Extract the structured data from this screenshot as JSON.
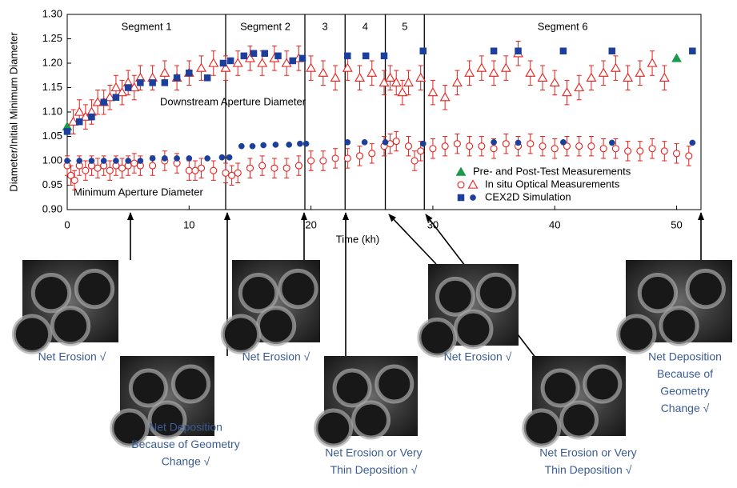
{
  "chart_data": {
    "type": "scatter",
    "x_label": "Time (kh)",
    "y_label": "Diameter/Initial Minimum Diameter",
    "xlim": [
      0,
      52
    ],
    "xticks": [
      0,
      10,
      20,
      30,
      40,
      50
    ],
    "ylim": [
      0.9,
      1.3
    ],
    "yticks": [
      {
        "value": 0.9,
        "label": "0.90"
      },
      {
        "value": 0.95,
        "label": "0.95"
      },
      {
        "value": 1.0,
        "label": "1.00"
      },
      {
        "value": 1.05,
        "label": "1.05"
      },
      {
        "value": 1.1,
        "label": "1.10"
      },
      {
        "value": 1.15,
        "label": "1.15"
      },
      {
        "value": 1.2,
        "label": "1.20"
      },
      {
        "value": 1.25,
        "label": "1.25"
      },
      {
        "value": 1.3,
        "label": "1.30"
      }
    ],
    "segment_boundaries": [
      13,
      19.5,
      22.8,
      26.1,
      29.3
    ],
    "segment_labels": [
      "Segment 1",
      "Segment 2",
      "3",
      "4",
      "5",
      "Segment 6"
    ],
    "annotations": [
      "Downstream Aperture Diameter",
      "Minimum Aperture Diameter"
    ],
    "series": [
      {
        "name": "Pre- and Post-Test Measurements",
        "color": "#1a9a4a",
        "groups": [
          {
            "marker": "triangle",
            "filled": true,
            "x": [
              0,
              50
            ],
            "values": [
              1.07,
              1.21
            ]
          }
        ]
      },
      {
        "name": "In situ Optical Measurements",
        "color": "#e8201c",
        "groups": [
          {
            "marker": "circle",
            "filled": false,
            "x": [
              0,
              0.3,
              0.6,
              1,
              1.5,
              2,
              2.5,
              3,
              3.5,
              4,
              4.5,
              5,
              5.5,
              6,
              7,
              8,
              9,
              10,
              10.5,
              11,
              12,
              13,
              13.5,
              14,
              15,
              16,
              17,
              18,
              19,
              20,
              21,
              22,
              23,
              24,
              25,
              26,
              26.5,
              27,
              28,
              28.5,
              29,
              30,
              31,
              32,
              33,
              34,
              35,
              36,
              37,
              38,
              39,
              40,
              41,
              42,
              43,
              44,
              45,
              46,
              47,
              48,
              49,
              50,
              51
            ],
            "values": [
              0.99,
              0.97,
              0.96,
              0.99,
              0.98,
              0.99,
              0.985,
              0.99,
              0.98,
              0.99,
              0.985,
              0.99,
              0.995,
              0.99,
              0.99,
              1.0,
              0.995,
              0.98,
              0.98,
              0.985,
              0.98,
              0.975,
              0.97,
              0.975,
              0.985,
              0.99,
              0.985,
              0.985,
              0.99,
              1.0,
              1.0,
              1.005,
              1.005,
              1.01,
              1.015,
              1.03,
              1.035,
              1.04,
              1.03,
              1.0,
              1.02,
              1.025,
              1.03,
              1.035,
              1.03,
              1.03,
              1.025,
              1.035,
              1.03,
              1.035,
              1.03,
              1.025,
              1.03,
              1.03,
              1.03,
              1.025,
              1.025,
              1.02,
              1.02,
              1.025,
              1.02,
              1.015,
              1.01
            ],
            "errors": [
              0.02,
              0.02,
              0.02,
              0.02,
              0.02,
              0.02,
              0.02,
              0.02,
              0.02,
              0.02,
              0.02,
              0.02,
              0.02,
              0.02,
              0.02,
              0.02,
              0.02,
              0.02,
              0.02,
              0.02,
              0.02,
              0.02,
              0.02,
              0.02,
              0.02,
              0.02,
              0.02,
              0.02,
              0.02,
              0.02,
              0.02,
              0.02,
              0.02,
              0.02,
              0.02,
              0.02,
              0.02,
              0.02,
              0.02,
              0.02,
              0.02,
              0.02,
              0.02,
              0.02,
              0.02,
              0.02,
              0.02,
              0.02,
              0.02,
              0.02,
              0.02,
              0.02,
              0.02,
              0.02,
              0.02,
              0.02,
              0.02,
              0.02,
              0.02,
              0.02,
              0.02,
              0.02,
              0.02
            ]
          },
          {
            "marker": "triangle",
            "filled": false,
            "x": [
              0.5,
              1,
              1.5,
              2,
              2.5,
              3,
              3.5,
              4,
              4.5,
              5,
              5.5,
              6,
              7,
              8,
              9,
              10,
              11,
              12,
              13,
              14,
              15,
              16,
              17,
              18,
              19,
              20,
              21,
              22,
              23,
              24,
              25,
              26,
              26.5,
              27,
              27.5,
              28,
              29,
              30,
              31,
              32,
              33,
              34,
              35,
              36,
              37,
              38,
              39,
              40,
              41,
              42,
              43,
              44,
              45,
              46,
              47,
              48,
              49
            ],
            "values": [
              1.08,
              1.1,
              1.09,
              1.1,
              1.12,
              1.12,
              1.13,
              1.15,
              1.14,
              1.16,
              1.15,
              1.17,
              1.17,
              1.18,
              1.17,
              1.18,
              1.19,
              1.2,
              1.19,
              1.2,
              1.21,
              1.2,
              1.21,
              1.2,
              1.21,
              1.19,
              1.18,
              1.17,
              1.19,
              1.17,
              1.18,
              1.16,
              1.17,
              1.16,
              1.14,
              1.16,
              1.17,
              1.14,
              1.13,
              1.16,
              1.18,
              1.19,
              1.18,
              1.19,
              1.22,
              1.18,
              1.17,
              1.16,
              1.14,
              1.15,
              1.17,
              1.18,
              1.19,
              1.17,
              1.18,
              1.2,
              1.17
            ],
            "errors": [
              0.025,
              0.025,
              0.025,
              0.025,
              0.025,
              0.025,
              0.025,
              0.025,
              0.025,
              0.025,
              0.025,
              0.025,
              0.025,
              0.025,
              0.025,
              0.025,
              0.025,
              0.025,
              0.025,
              0.025,
              0.025,
              0.025,
              0.025,
              0.025,
              0.025,
              0.025,
              0.025,
              0.025,
              0.025,
              0.025,
              0.025,
              0.025,
              0.025,
              0.025,
              0.025,
              0.025,
              0.025,
              0.025,
              0.025,
              0.025,
              0.025,
              0.025,
              0.025,
              0.025,
              0.025,
              0.025,
              0.025,
              0.025,
              0.025,
              0.025,
              0.025,
              0.025,
              0.025,
              0.025,
              0.025,
              0.025,
              0.025
            ]
          }
        ]
      },
      {
        "name": "CEX2D Simulation",
        "color": "#1c3f9c",
        "groups": [
          {
            "marker": "square",
            "filled": true,
            "x": [
              0,
              1,
              2,
              3,
              4,
              5,
              6,
              7,
              8,
              9,
              10,
              11.5,
              12.8,
              13.4,
              14.5,
              15.3,
              16.2,
              17.3,
              18.5,
              19.3,
              23,
              24.5,
              26,
              29.2,
              35,
              37,
              40.7,
              44.7,
              51.3
            ],
            "values": [
              1.06,
              1.08,
              1.09,
              1.12,
              1.13,
              1.15,
              1.16,
              1.16,
              1.16,
              1.17,
              1.18,
              1.17,
              1.2,
              1.205,
              1.215,
              1.22,
              1.22,
              1.215,
              1.205,
              1.21,
              1.215,
              1.215,
              1.215,
              1.225,
              1.225,
              1.225,
              1.225,
              1.225,
              1.225
            ]
          },
          {
            "marker": "circle",
            "filled": true,
            "x": [
              0,
              1,
              2,
              3,
              4,
              5,
              6,
              7,
              8,
              9,
              10,
              11.5,
              12.7,
              13.3,
              14.3,
              15.2,
              16.1,
              17.1,
              18.2,
              19.1,
              19.6,
              23,
              24.4,
              26.1,
              29.2,
              35,
              37,
              40.7,
              44.7,
              51.3
            ],
            "values": [
              1.0,
              1.0,
              1.0,
              1.0,
              1.0,
              1.0,
              1.0,
              1.005,
              1.005,
              1.005,
              1.005,
              1.005,
              1.007,
              1.007,
              1.03,
              1.03,
              1.032,
              1.033,
              1.033,
              1.035,
              1.035,
              1.038,
              1.038,
              1.038,
              1.035,
              1.038,
              1.037,
              1.038,
              1.037,
              1.037
            ]
          }
        ]
      }
    ]
  },
  "photos": [
    {
      "caption": [
        "Net Erosion √"
      ]
    },
    {
      "caption": [
        "Net Deposition",
        "Because of Geometry",
        "Change √"
      ]
    },
    {
      "caption": [
        "Net Erosion √"
      ]
    },
    {
      "caption": [
        "Net Erosion or Very",
        "Thin Deposition √"
      ]
    },
    {
      "caption": [
        "Net Erosion √"
      ]
    },
    {
      "caption": [
        "Net Erosion or Very",
        "Thin Deposition √"
      ]
    },
    {
      "caption": [
        "Net Deposition",
        "Because of",
        "Geometry",
        "Change √"
      ]
    }
  ]
}
